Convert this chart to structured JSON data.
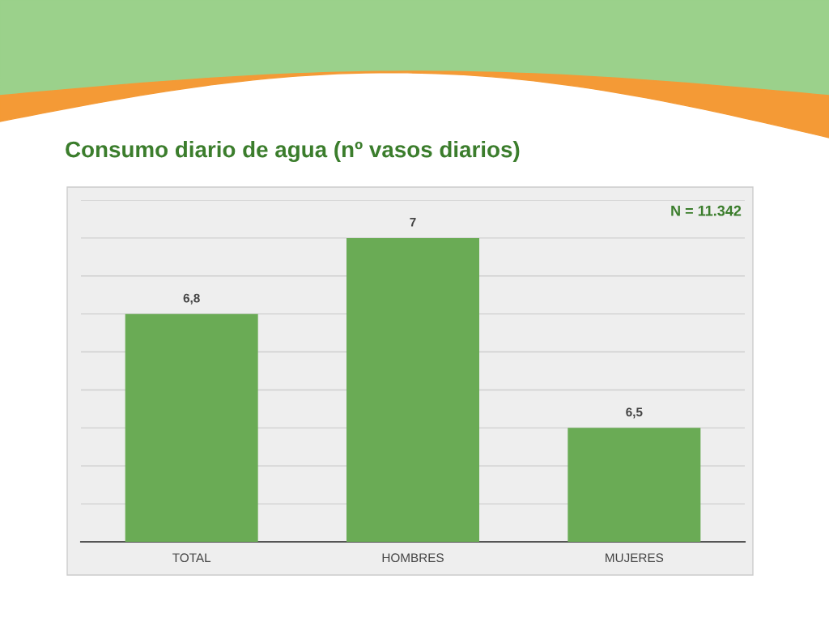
{
  "chart_data": {
    "type": "bar",
    "title": "Consumo diario de agua (nº vasos diarios)",
    "categories": [
      "TOTAL",
      "HOMBRES",
      "MUJERES"
    ],
    "values": [
      6.8,
      7,
      6.5
    ],
    "value_labels": [
      "6,8",
      "7",
      "6,5"
    ],
    "color": "#6aab55",
    "ylim": [
      6.2,
      7.1
    ],
    "yticks": [
      {
        "value": 6.2,
        "label": null
      },
      {
        "value": 6.3,
        "label": null
      },
      {
        "value": 6.4,
        "label": null
      },
      {
        "value": 6.5,
        "label": null
      },
      {
        "value": 6.6,
        "label": null
      },
      {
        "value": 6.7,
        "label": null
      },
      {
        "value": 6.8,
        "label": null
      },
      {
        "value": 6.9,
        "label": null
      },
      {
        "value": 7.0,
        "label": null
      },
      {
        "value": 7.1,
        "label": null
      }
    ],
    "tick_labels": "x",
    "grid": "y",
    "legend": false,
    "annotations": [
      "N = 11.342"
    ]
  }
}
